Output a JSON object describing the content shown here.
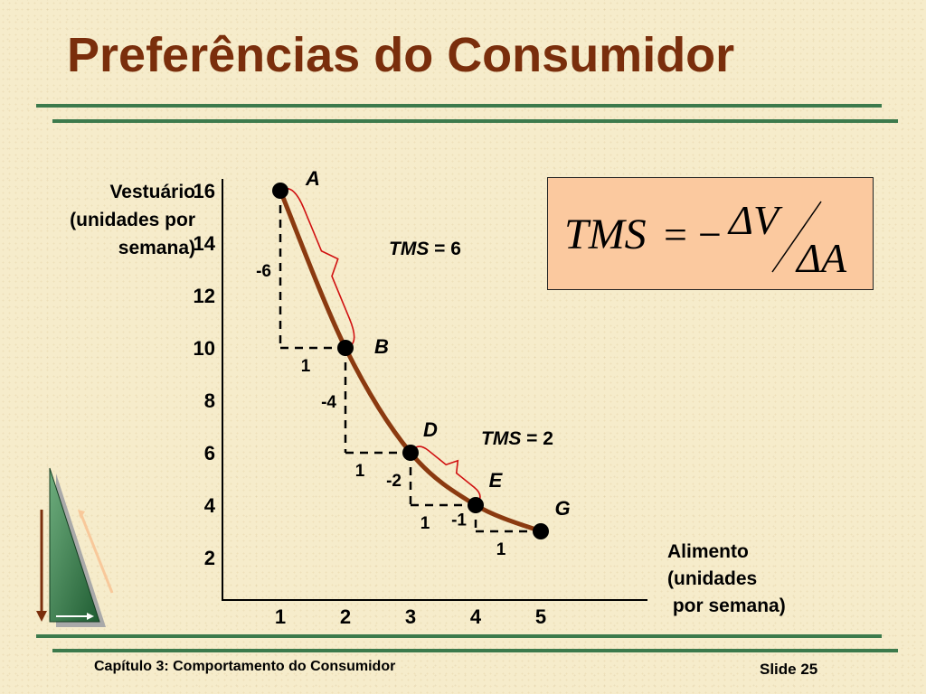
{
  "slide": {
    "title": "Preferências do Consumidor",
    "footer_chapter": "Capítulo 3: Comportamento do Consumidor",
    "footer_slide": "Slide 25"
  },
  "formula": {
    "lhs": "TMS",
    "equals": "=",
    "minus": "−",
    "numerator": "ΔV",
    "denominator": "ΔA"
  },
  "colors": {
    "title": "#7a2e0c",
    "curve": "#8b3a10",
    "rule": "#3c7a4c",
    "formula_box": "#fbc99f",
    "brace": "#d01010"
  },
  "chart_data": {
    "type": "line",
    "ylabel_lines": [
      "Vestuário",
      "(unidades por",
      "semana)"
    ],
    "xlabel_lines": [
      "Alimento",
      "(unidades",
      " por semana)"
    ],
    "xticks": [
      "1",
      "2",
      "3",
      "4",
      "5"
    ],
    "yticks": [
      "2",
      "4",
      "6",
      "8",
      "10",
      "12",
      "14",
      "16"
    ],
    "xlim": [
      0,
      5.4
    ],
    "ylim": [
      0,
      16.8
    ],
    "grid": false,
    "points": [
      {
        "label": "A",
        "x": 1,
        "y": 16
      },
      {
        "label": "B",
        "x": 2,
        "y": 10
      },
      {
        "label": "D",
        "x": 3,
        "y": 6
      },
      {
        "label": "E",
        "x": 4,
        "y": 4
      },
      {
        "label": "G",
        "x": 5,
        "y": 3
      }
    ],
    "steps": [
      {
        "dy": "-6",
        "dx": "1"
      },
      {
        "dy": "-4",
        "dx": "1"
      },
      {
        "dy": "-2",
        "dx": "1"
      },
      {
        "dy": "-1",
        "dx": "1"
      }
    ],
    "annotations": [
      {
        "prefix": "TMS",
        "suffix": " = 6"
      },
      {
        "prefix": "TMS",
        "suffix": " = 2"
      }
    ]
  }
}
